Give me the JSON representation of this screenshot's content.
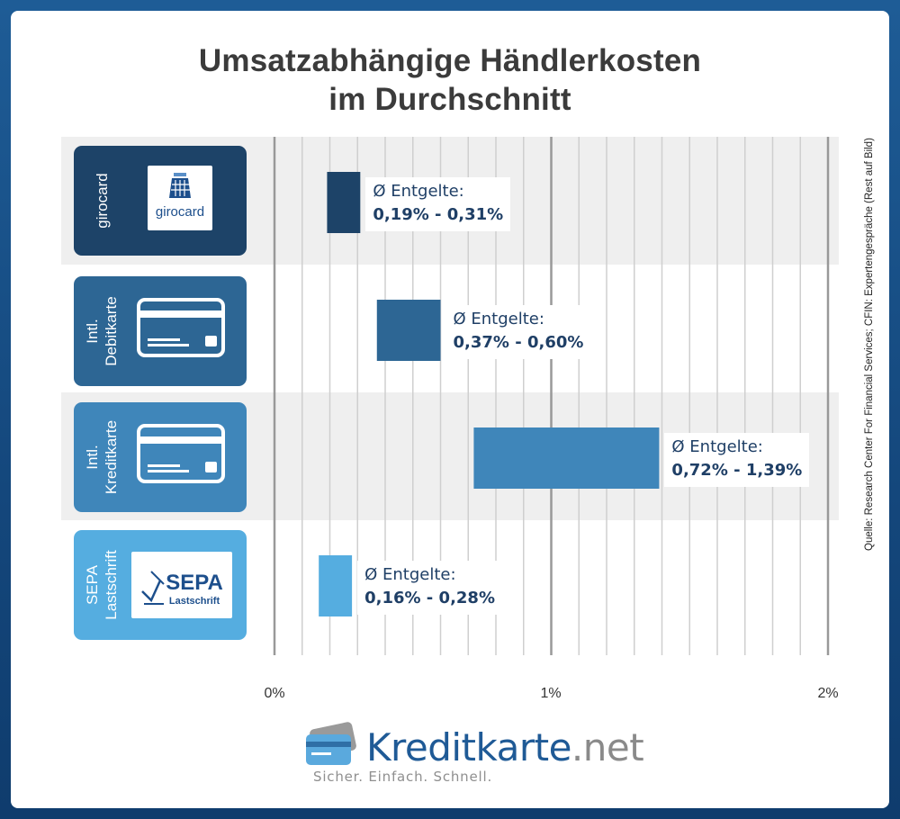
{
  "chart_data": {
    "type": "bar",
    "subtype": "floating-range-horizontal",
    "title_lines": [
      "Umsatzabhängige Händlerkosten",
      "im Durchschnitt"
    ],
    "source": "Quelle: Research Center For Financial Services; CFIN: Expertengespräche (Rest auf Bild)",
    "x_ticks": [
      "0%",
      "1%",
      "2%"
    ],
    "xlim": [
      0,
      2
    ],
    "categories": [
      {
        "label_lines": [
          "girocard"
        ],
        "logo": "girocard-logo",
        "logo_text": "girocard",
        "color": "#1d4368",
        "range": [
          0.19,
          0.31
        ],
        "ann_label": "Ø Entgelte:",
        "ann_value": "0,19% - 0,31%"
      },
      {
        "label_lines": [
          "Intl.",
          "Debitkarte"
        ],
        "logo": "card-icon",
        "color": "#2d6694",
        "range": [
          0.37,
          0.6
        ],
        "ann_label": "Ø Entgelte:",
        "ann_value": "0,37% - 0,60%"
      },
      {
        "label_lines": [
          "Intl.",
          "Kreditkarte"
        ],
        "logo": "card-icon",
        "color": "#3f86ba",
        "range": [
          0.72,
          1.39
        ],
        "ann_label": "Ø Entgelte:",
        "ann_value": "0,72% - 1,39%"
      },
      {
        "label_lines": [
          "SEPA",
          "Lastschrift"
        ],
        "logo": "sepa-logo",
        "logo_text": [
          "SEPA",
          "Lastschrift"
        ],
        "color": "#55ade0",
        "range": [
          0.16,
          0.28
        ],
        "ann_label": "Ø Entgelte:",
        "ann_value": "0,16% - 0,28%"
      }
    ]
  },
  "brand": {
    "name": "Kreditkarte",
    "tld": ".net",
    "tagline": "Sicher. Einfach. Schnell."
  },
  "colors": {
    "grid_major": "#999999",
    "grid_minor": "#cfcfcf",
    "row_alt": "#efefef"
  }
}
